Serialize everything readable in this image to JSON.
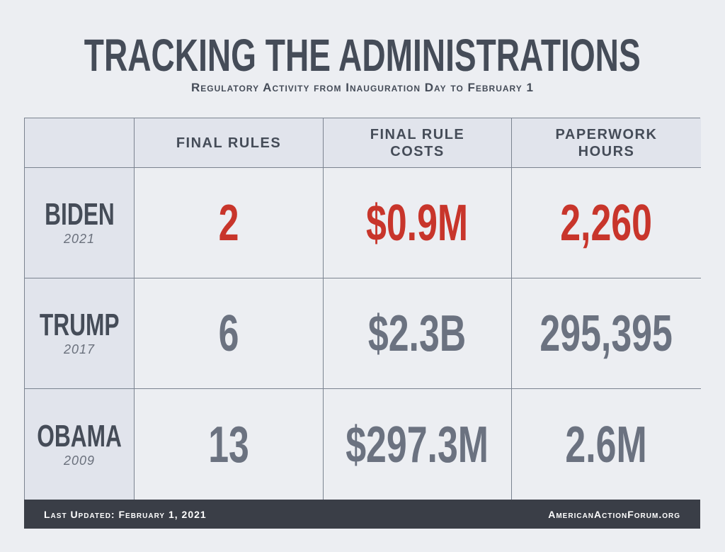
{
  "title": "TRACKING THE ADMINISTRATIONS",
  "subtitle": "Regulatory Activity from Inauguration Day to February 1",
  "columns": [
    "FINAL RULES",
    "FINAL RULE COSTS",
    "PAPERWORK HOURS"
  ],
  "rows": [
    {
      "name": "BIDEN",
      "year": "2021",
      "values": [
        "2",
        "$0.9M",
        "2,260"
      ]
    },
    {
      "name": "TRUMP",
      "year": "2017",
      "values": [
        "6",
        "$2.3B",
        "295,395"
      ]
    },
    {
      "name": "OBAMA",
      "year": "2009",
      "values": [
        "13",
        "$297.3M",
        "2.6M"
      ]
    }
  ],
  "footer": {
    "updated": "Last Updated: February 1, 2021",
    "source": "AmericanActionForum.org"
  },
  "colors": {
    "highlight": "#c8352b",
    "text": "#454c58",
    "value": "#6b7280"
  }
}
